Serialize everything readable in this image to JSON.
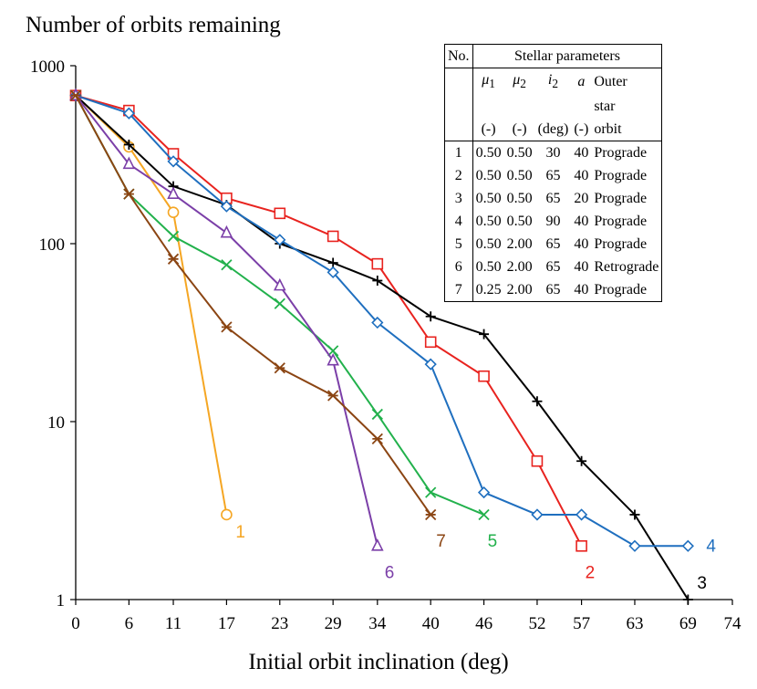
{
  "chart_data": {
    "type": "line",
    "title": "",
    "ylabel": "Number of orbits remaining",
    "xlabel": "Initial orbit inclination (deg)",
    "yscale": "log",
    "ylim": [
      1,
      1000
    ],
    "xlim": [
      0,
      74
    ],
    "x_ticks": [
      0,
      6,
      11,
      17,
      23,
      29,
      34,
      40,
      46,
      52,
      57,
      63,
      69,
      74
    ],
    "y_ticks": [
      1,
      10,
      100,
      1000
    ],
    "series": [
      {
        "name": "1",
        "color": "#F5A623",
        "marker": "circle",
        "x": [
          0,
          6,
          11,
          17
        ],
        "values": [
          680,
          350,
          150,
          3
        ]
      },
      {
        "name": "2",
        "color": "#E8231F",
        "marker": "square",
        "x": [
          0,
          6,
          11,
          17,
          23,
          29,
          34,
          40,
          46,
          52,
          57
        ],
        "values": [
          680,
          560,
          320,
          180,
          148,
          110,
          77,
          28,
          18,
          6,
          2
        ]
      },
      {
        "name": "3",
        "color": "#000000",
        "marker": "plus",
        "x": [
          0,
          6,
          11,
          17,
          23,
          29,
          34,
          40,
          46,
          52,
          57,
          63,
          69
        ],
        "values": [
          680,
          360,
          210,
          165,
          100,
          78,
          62,
          39,
          31,
          13,
          6,
          3,
          1
        ]
      },
      {
        "name": "4",
        "color": "#1F6FBF",
        "marker": "diamond",
        "x": [
          0,
          6,
          11,
          17,
          23,
          29,
          34,
          40,
          46,
          52,
          57,
          63,
          69
        ],
        "values": [
          680,
          540,
          290,
          162,
          105,
          69,
          36,
          21,
          4,
          3,
          3,
          2,
          2
        ]
      },
      {
        "name": "5",
        "color": "#22B14C",
        "marker": "x",
        "x": [
          0,
          6,
          11,
          17,
          23,
          29,
          34,
          40,
          46
        ],
        "values": [
          680,
          190,
          110,
          76,
          46,
          25,
          11,
          4,
          3
        ]
      },
      {
        "name": "6",
        "color": "#7B3FA8",
        "marker": "triangle",
        "x": [
          0,
          6,
          11,
          17,
          23,
          29,
          34
        ],
        "values": [
          680,
          280,
          190,
          115,
          58,
          22,
          2
        ]
      },
      {
        "name": "7",
        "color": "#8B4513",
        "marker": "star",
        "x": [
          0,
          6,
          11,
          17,
          23,
          29,
          34,
          40
        ],
        "values": [
          680,
          190,
          82,
          34,
          20,
          14,
          8,
          3
        ]
      }
    ]
  },
  "table": {
    "header_no": "No.",
    "header_stellar": "Stellar parameters",
    "col_mu1": "μ",
    "col_mu1_sub": "1",
    "col_mu2": "μ",
    "col_mu2_sub": "2",
    "col_i2": "i",
    "col_i2_sub": "2",
    "col_a": "a",
    "col_outer_1": "Outer",
    "col_outer_2": "star",
    "col_outer_3": "orbit",
    "unit_mu1": "(-)",
    "unit_mu2": "(-)",
    "unit_i2": "(deg)",
    "unit_a": "(-)",
    "rows": [
      {
        "no": "1",
        "mu1": "0.50",
        "mu2": "0.50",
        "i2": "30",
        "a": "40",
        "orbit": "Prograde"
      },
      {
        "no": "2",
        "mu1": "0.50",
        "mu2": "0.50",
        "i2": "65",
        "a": "40",
        "orbit": "Prograde"
      },
      {
        "no": "3",
        "mu1": "0.50",
        "mu2": "0.50",
        "i2": "65",
        "a": "20",
        "orbit": "Prograde"
      },
      {
        "no": "4",
        "mu1": "0.50",
        "mu2": "0.50",
        "i2": "90",
        "a": "40",
        "orbit": "Prograde"
      },
      {
        "no": "5",
        "mu1": "0.50",
        "mu2": "2.00",
        "i2": "65",
        "a": "40",
        "orbit": "Prograde"
      },
      {
        "no": "6",
        "mu1": "0.50",
        "mu2": "2.00",
        "i2": "65",
        "a": "40",
        "orbit": "Retrograde"
      },
      {
        "no": "7",
        "mu1": "0.25",
        "mu2": "2.00",
        "i2": "65",
        "a": "40",
        "orbit": "Prograde"
      }
    ]
  }
}
